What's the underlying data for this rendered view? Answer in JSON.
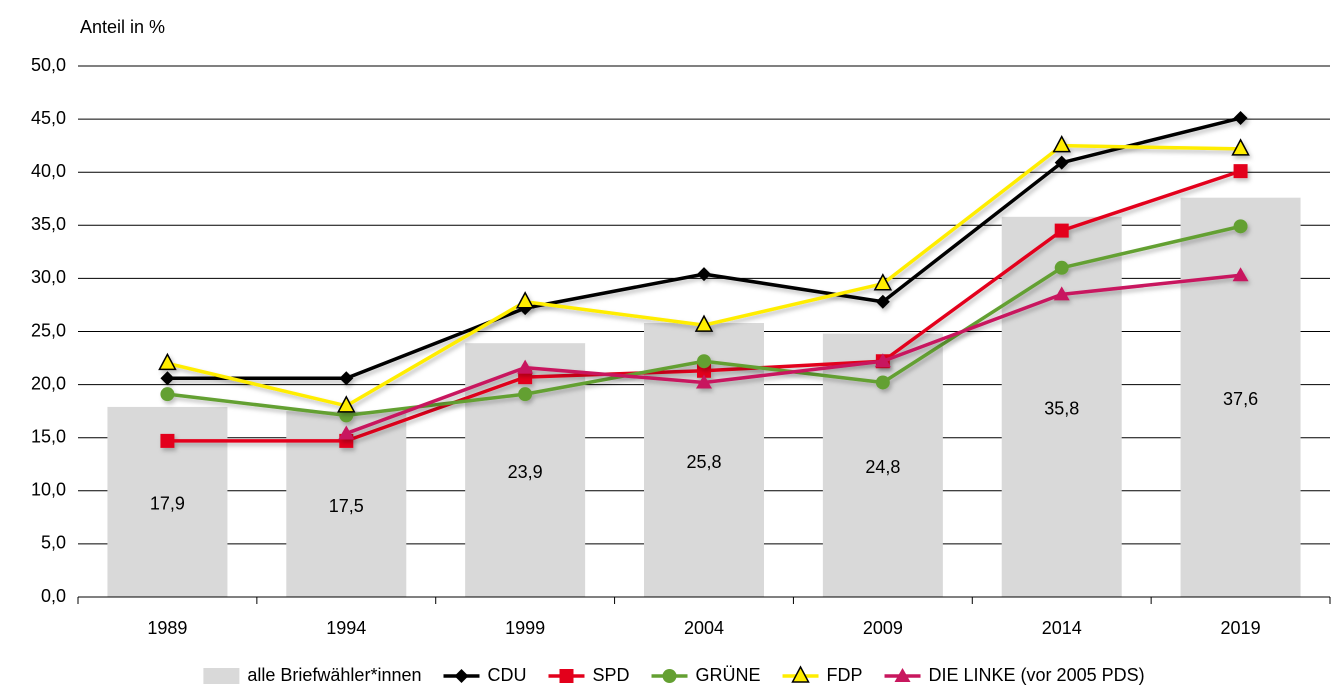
{
  "chart_data": {
    "type": "bar-line",
    "y_label": "Anteil in %",
    "categories": [
      "1989",
      "1994",
      "1999",
      "2004",
      "2009",
      "2014",
      "2019"
    ],
    "bars": {
      "name": "alle Briefwähler*innen",
      "color": "#d9d9d9",
      "values": [
        17.9,
        17.5,
        23.9,
        25.8,
        24.8,
        35.8,
        37.6
      ],
      "value_labels": [
        "17,9",
        "17,5",
        "23,9",
        "25,8",
        "24,8",
        "35,8",
        "37,6"
      ]
    },
    "series": [
      {
        "name": "CDU",
        "color": "#000000",
        "marker": "diamond",
        "values": [
          20.6,
          20.6,
          27.2,
          30.4,
          27.8,
          40.9,
          45.1
        ]
      },
      {
        "name": "SPD",
        "color": "#e3001b",
        "marker": "square",
        "values": [
          14.7,
          14.7,
          20.7,
          21.3,
          22.2,
          34.5,
          40.1
        ]
      },
      {
        "name": "GRÜNE",
        "color": "#64a032",
        "marker": "circle",
        "values": [
          19.1,
          17.1,
          19.1,
          22.2,
          20.2,
          31.0,
          34.9
        ]
      },
      {
        "name": "FDP",
        "color": "#ffed00",
        "marker": "triangle-outline",
        "values": [
          22.0,
          18.0,
          27.8,
          25.6,
          29.5,
          42.5,
          42.2
        ]
      },
      {
        "name": "DIE LINKE (vor 2005 PDS)",
        "color": "#c8175e",
        "marker": "triangle",
        "values": [
          null,
          15.4,
          21.6,
          20.2,
          22.2,
          28.5,
          30.3
        ]
      }
    ],
    "ylim": [
      0,
      50
    ],
    "yticks": [
      {
        "value": 0,
        "label": "0,0"
      },
      {
        "value": 5,
        "label": "5,0"
      },
      {
        "value": 10,
        "label": "10,0"
      },
      {
        "value": 15,
        "label": "15,0"
      },
      {
        "value": 20,
        "label": "20,0"
      },
      {
        "value": 25,
        "label": "25,0"
      },
      {
        "value": 30,
        "label": "30,0"
      },
      {
        "value": 35,
        "label": "35,0"
      },
      {
        "value": 40,
        "label": "40,0"
      },
      {
        "value": 45,
        "label": "45,0"
      },
      {
        "value": 50,
        "label": "50,0"
      }
    ],
    "grid": true,
    "legend": "bottom"
  }
}
